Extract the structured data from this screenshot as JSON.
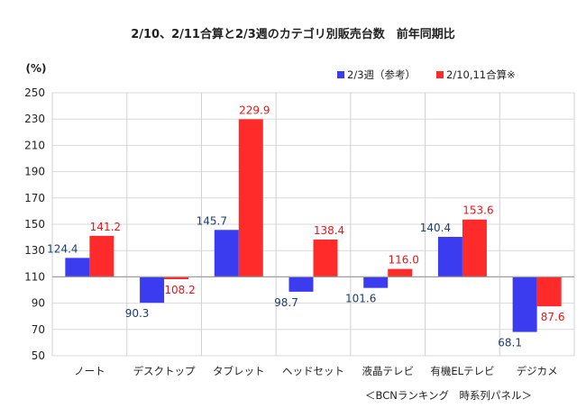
{
  "chart_data": {
    "type": "bar",
    "title": "2/10、2/11合算と2/3週のカテゴリ別販売台数　前年同期比",
    "ylabel": "(%)",
    "xlabel": "",
    "ylim": [
      50,
      250
    ],
    "baseline": 110,
    "yticks": [
      50,
      70,
      90,
      110,
      130,
      150,
      170,
      190,
      210,
      230,
      250
    ],
    "grid": true,
    "legend_position": "top-right",
    "categories": [
      "ノート",
      "デスクトップ",
      "タブレット",
      "ヘッドセット",
      "液晶テレビ",
      "有機ELテレビ",
      "デジカメ"
    ],
    "series": [
      {
        "name": "2/3週（参考）",
        "color": "#3b3bf0",
        "label_color": "#1f3c6e",
        "values": [
          124.4,
          90.3,
          145.7,
          98.7,
          101.6,
          140.4,
          68.1
        ]
      },
      {
        "name": "2/10,11合算※",
        "color": "#ff2b2b",
        "label_color": "#e8141b",
        "values": [
          141.2,
          108.2,
          229.9,
          138.4,
          116.0,
          153.6,
          87.6
        ]
      }
    ],
    "value_labels": [
      [
        "124.4",
        "90.3",
        "145.7",
        "98.7",
        "101.6",
        "140.4",
        "68.1"
      ],
      [
        "141.2",
        "108.2",
        "229.9",
        "138.4",
        "116.0",
        "153.6",
        "87.6"
      ]
    ],
    "source": "＜BCNランキング　時系列パネル＞"
  }
}
